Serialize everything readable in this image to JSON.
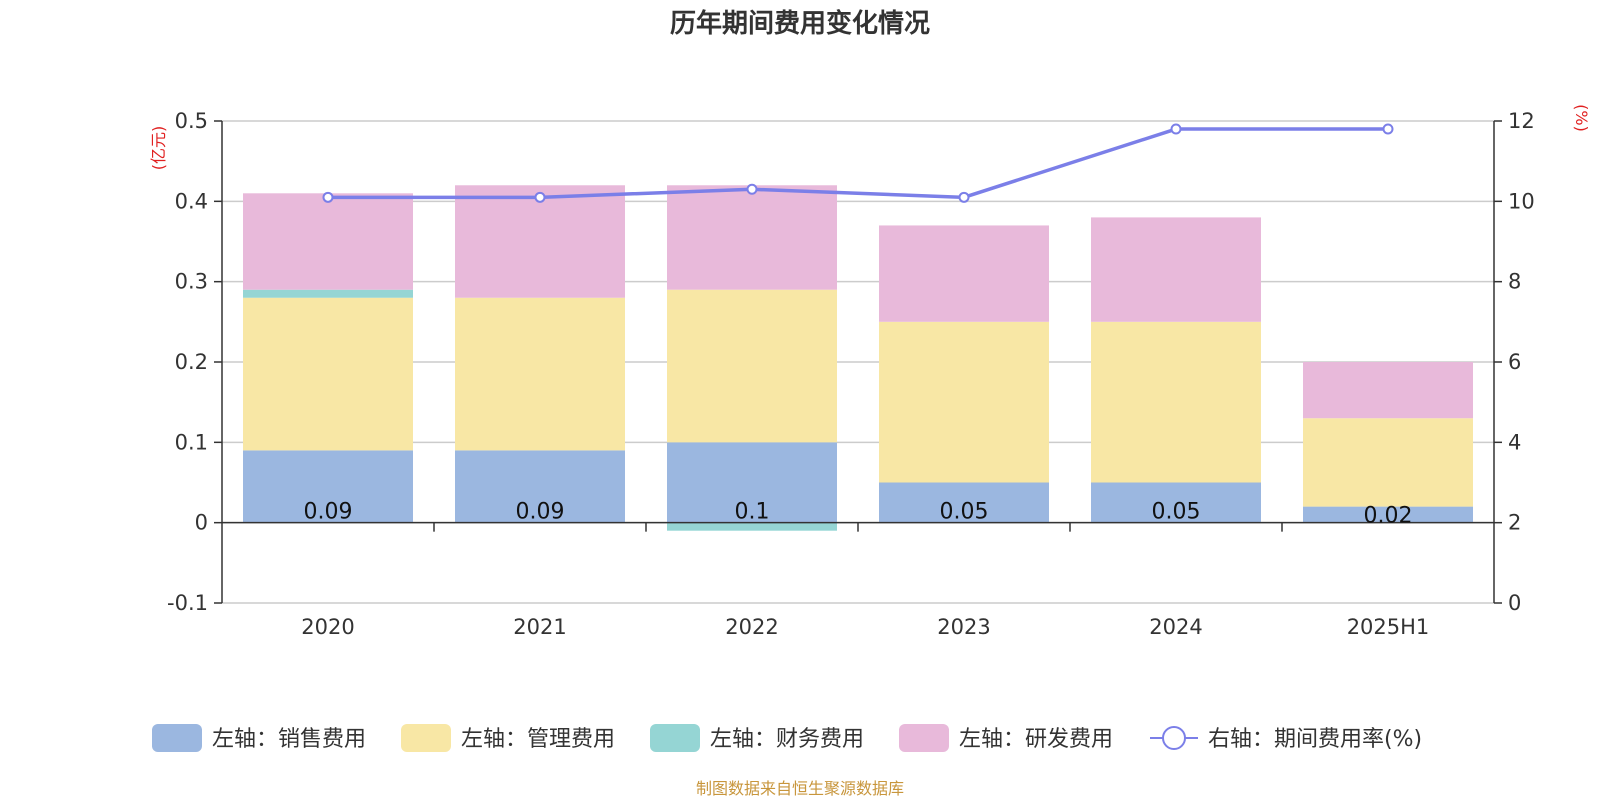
{
  "chart_data": {
    "type": "bar",
    "title": "历年期间费用变化情况",
    "categories": [
      "2020",
      "2021",
      "2022",
      "2023",
      "2024",
      "2025H1"
    ],
    "left_axis": {
      "unit": "(亿元)",
      "ylim": [
        -0.1,
        0.5
      ],
      "ticks": [
        "-0.1",
        "0",
        "0.1",
        "0.2",
        "0.3",
        "0.4",
        "0.5"
      ],
      "tick_values": [
        -0.1,
        0,
        0.1,
        0.2,
        0.3,
        0.4,
        0.5
      ]
    },
    "right_axis": {
      "unit": "(%)",
      "ylim": [
        0,
        12
      ],
      "ticks": [
        "0",
        "2",
        "4",
        "6",
        "8",
        "10",
        "12"
      ],
      "tick_values": [
        0,
        2,
        4,
        6,
        8,
        10,
        12
      ]
    },
    "grid": true,
    "legend_position": "bottom",
    "series": [
      {
        "name": "左轴：销售费用",
        "type": "bar",
        "axis": "left",
        "color": "#9bb7e0",
        "values": [
          0.09,
          0.09,
          0.1,
          0.05,
          0.05,
          0.02
        ],
        "labels": [
          "0.09",
          "0.09",
          "0.1",
          "0.05",
          "0.05",
          "0.02"
        ]
      },
      {
        "name": "左轴：管理费用",
        "type": "bar",
        "axis": "left",
        "color": "#f8e7a5",
        "values": [
          0.19,
          0.19,
          0.19,
          0.2,
          0.2,
          0.11
        ]
      },
      {
        "name": "左轴：财务费用",
        "type": "bar",
        "axis": "left",
        "color": "#95d5d4",
        "values": [
          0.01,
          0,
          -0.01,
          0,
          0,
          0
        ]
      },
      {
        "name": "左轴：研发费用",
        "type": "bar",
        "axis": "left",
        "color": "#e8b9da",
        "values": [
          0.12,
          0.14,
          0.13,
          0.12,
          0.13,
          0.07
        ]
      },
      {
        "name": "右轴：期间费用率(%)",
        "type": "line",
        "axis": "right",
        "color": "#7b7fe8",
        "values": [
          10.1,
          10.1,
          10.3,
          10.1,
          11.8,
          11.8
        ]
      }
    ],
    "source": "制图数据来自恒生聚源数据库"
  }
}
